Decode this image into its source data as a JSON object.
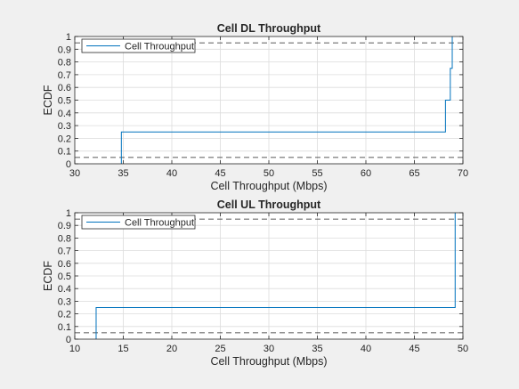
{
  "chart_data": [
    {
      "type": "line",
      "title": "Cell DL Throughput",
      "xlabel": "Cell Throughput (Mbps)",
      "ylabel": "ECDF",
      "xlim": [
        30,
        70
      ],
      "ylim": [
        0,
        1
      ],
      "xticks": [
        30,
        35,
        40,
        45,
        50,
        55,
        60,
        65,
        70
      ],
      "yticks": [
        0,
        0.1,
        0.2,
        0.3,
        0.4,
        0.5,
        0.6,
        0.7,
        0.8,
        0.9,
        1
      ],
      "grid": true,
      "legend": {
        "entries": [
          "Cell Throughput"
        ],
        "placement": "top-left"
      },
      "colors": {
        "series": "#0072bd",
        "reference": "#262626"
      },
      "reference_lines_y": [
        0.05,
        0.95
      ],
      "series": [
        {
          "name": "Cell Throughput",
          "step": true,
          "x": [
            34.8,
            34.8,
            68.2,
            68.2,
            68.7,
            68.7,
            68.9,
            68.9
          ],
          "y": [
            0,
            0.25,
            0.25,
            0.5,
            0.5,
            0.75,
            0.75,
            1
          ]
        }
      ]
    },
    {
      "type": "line",
      "title": "Cell UL Throughput",
      "xlabel": "Cell Throughput (Mbps)",
      "ylabel": "ECDF",
      "xlim": [
        10,
        50
      ],
      "ylim": [
        0,
        1
      ],
      "xticks": [
        10,
        15,
        20,
        25,
        30,
        35,
        40,
        45,
        50
      ],
      "yticks": [
        0,
        0.1,
        0.2,
        0.3,
        0.4,
        0.5,
        0.6,
        0.7,
        0.8,
        0.9,
        1
      ],
      "grid": true,
      "legend": {
        "entries": [
          "Cell Throughput"
        ],
        "placement": "top-left"
      },
      "colors": {
        "series": "#0072bd",
        "reference": "#262626"
      },
      "reference_lines_y": [
        0.05,
        0.95
      ],
      "series": [
        {
          "name": "Cell Throughput",
          "step": true,
          "x": [
            12.2,
            12.2,
            49.2,
            49.2
          ],
          "y": [
            0,
            0.25,
            0.25,
            1
          ]
        }
      ]
    }
  ]
}
